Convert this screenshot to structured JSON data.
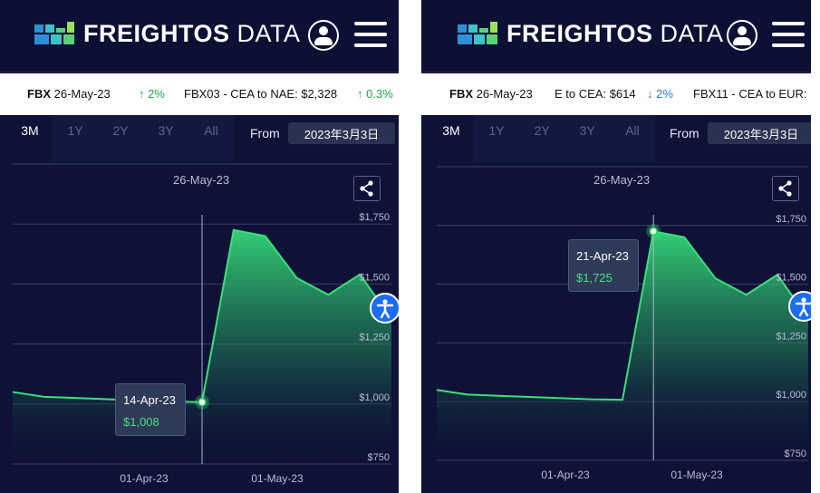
{
  "brand": {
    "name_bold": "FREIGHTOS",
    "name_light": "DATA",
    "mark_colors": [
      "#2f8fd8",
      "#3fc1c9",
      "#5bd27a",
      "#9be15d"
    ]
  },
  "icons": {
    "account": "user-circle-icon",
    "menu": "hamburger-menu-icon",
    "share": "share-icon",
    "accessibility": "accessibility-icon",
    "trend_up": "arrow-up-icon",
    "trend_down": "arrow-down-icon"
  },
  "colors": {
    "background": "#0e1236",
    "line": "#3be07a",
    "trend_up": "#1aa64a",
    "trend_down": "#2877e0",
    "accessibility": "#1b6cf0"
  },
  "panels": [
    {
      "ticker": {
        "index_label": "FBX",
        "index_date": "26-May-23",
        "item1_arrow": "↑",
        "item1_pct": "2%",
        "item2_label": "FBX03 - CEA to NAE: $2,328",
        "item2_arrow": "↑",
        "item2_pct": "0.3%"
      },
      "ranges": [
        "3M",
        "1Y",
        "2Y",
        "3Y",
        "All"
      ],
      "active_range": "3M",
      "from_label": "From",
      "from_date": "2023年3月3日",
      "date_header": "26-May-23",
      "y_labels": [
        "$1,750",
        "$1,500",
        "$1,250",
        "$1,000",
        "$750"
      ],
      "x_labels": [
        "01-Apr-23",
        "01-May-23"
      ],
      "tooltip": {
        "date": "14-Apr-23",
        "value": "$1,008"
      }
    },
    {
      "ticker": {
        "index_label": "FBX",
        "index_date": "26-May-23",
        "item1_label": "E to CEA: $614",
        "item1_arrow": "↓",
        "item1_pct": "2%",
        "item2_label": "FBX11 - CEA to EUR:"
      },
      "ranges": [
        "3M",
        "1Y",
        "2Y",
        "3Y",
        "All"
      ],
      "active_range": "3M",
      "from_label": "From",
      "from_date": "2023年3月3日",
      "date_header": "26-May-23",
      "y_labels": [
        "$1,750",
        "$1,500",
        "$1,250",
        "$1,000",
        "$750"
      ],
      "x_labels": [
        "01-Apr-23",
        "01-May-23"
      ],
      "tooltip": {
        "date": "21-Apr-23",
        "value": "$1,725"
      }
    }
  ],
  "chart_data": [
    {
      "type": "area",
      "x": [
        "03-Mar-23",
        "10-Mar-23",
        "17-Mar-23",
        "24-Mar-23",
        "31-Mar-23",
        "07-Apr-23",
        "14-Apr-23",
        "21-Apr-23",
        "28-Apr-23",
        "05-May-23",
        "12-May-23",
        "19-May-23",
        "26-May-23"
      ],
      "series": [
        {
          "values": [
            1050,
            1030,
            1025,
            1020,
            1015,
            1010,
            1008,
            1725,
            1700,
            1525,
            1455,
            1540,
            1355
          ]
        }
      ],
      "ylabel": "",
      "xlabel": "",
      "ylim": [
        750,
        2000
      ],
      "y_ticks": [
        750,
        1000,
        1250,
        1500,
        1750
      ],
      "grid": true,
      "highlight_index": 6
    },
    {
      "type": "area",
      "x": [
        "03-Mar-23",
        "10-Mar-23",
        "17-Mar-23",
        "24-Mar-23",
        "31-Mar-23",
        "07-Apr-23",
        "14-Apr-23",
        "21-Apr-23",
        "28-Apr-23",
        "05-May-23",
        "12-May-23",
        "19-May-23",
        "26-May-23"
      ],
      "series": [
        {
          "values": [
            1050,
            1030,
            1025,
            1020,
            1015,
            1010,
            1008,
            1725,
            1700,
            1525,
            1455,
            1540,
            1355
          ]
        }
      ],
      "ylabel": "",
      "xlabel": "",
      "ylim": [
        750,
        2000
      ],
      "y_ticks": [
        750,
        1000,
        1250,
        1500,
        1750
      ],
      "grid": true,
      "highlight_index": 7
    }
  ]
}
